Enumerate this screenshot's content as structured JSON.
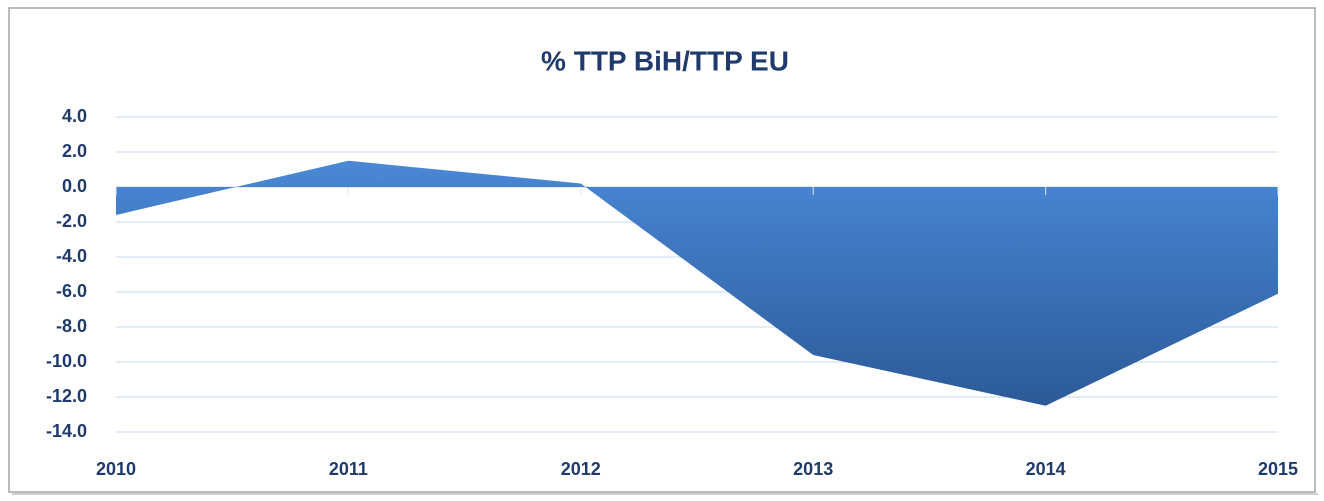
{
  "chart_data": {
    "type": "area",
    "title": "% TTP BiH/TTP EU",
    "categories": [
      "2010",
      "2011",
      "2012",
      "2013",
      "2014",
      "2015"
    ],
    "series": [
      {
        "name": "% TTP BiH/TTP EU",
        "color": "#3a74c2",
        "values": [
          -1.6,
          1.5,
          0.2,
          -9.6,
          -12.5,
          -6.1
        ]
      }
    ],
    "ylim": [
      -14,
      4
    ],
    "yticks": [
      {
        "value": 4,
        "label": "4.0"
      },
      {
        "value": 2,
        "label": "2.0"
      },
      {
        "value": 0,
        "label": "0.0"
      },
      {
        "value": -2,
        "label": "-2.0"
      },
      {
        "value": -4,
        "label": "-4.0"
      },
      {
        "value": -6,
        "label": "-6.0"
      },
      {
        "value": -8,
        "label": "-8.0"
      },
      {
        "value": -10,
        "label": "-10.0"
      },
      {
        "value": -12,
        "label": "-12.0"
      },
      {
        "value": -14,
        "label": "-14.0"
      }
    ],
    "grid": true
  }
}
